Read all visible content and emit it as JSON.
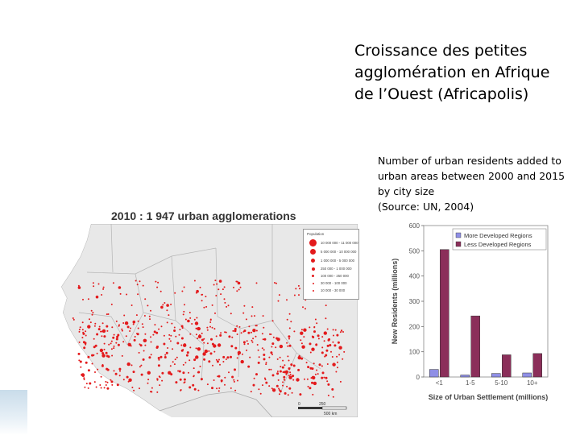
{
  "slide": {
    "title": "Croissance des petites agglomération en Afrique de l’Ouest (Africapolis)",
    "caption_lines": [
      "Number of urban residents added to",
      "urban areas between 2000 and 2015",
      "by city size",
      "(Source: UN, 2004)"
    ]
  },
  "map": {
    "title": "2010 : 1 947 urban agglomerations",
    "legend": {
      "title": "Population",
      "rows": [
        "10 000 000 - 11 000 000",
        "5 000 000 - 10 000 000",
        "1 000 000 - 5 000 000",
        "250 000 - 1 000 000",
        "100 000 - 250 000",
        "30 000 - 100 000",
        "10 000 - 30 000"
      ]
    },
    "scale_labels": [
      "0",
      "250",
      "500 km"
    ],
    "colors": {
      "dot": "#e31a1c",
      "land": "#e8e8e8",
      "sea": "#ffffff",
      "border": "#aaaaaa"
    }
  },
  "chart_data": {
    "type": "bar",
    "categories": [
      "<1",
      "1-5",
      "5-10",
      "10+"
    ],
    "series": [
      {
        "name": "More Developed Regions",
        "values": [
          30,
          8,
          14,
          16
        ],
        "color": "#8f8fe6"
      },
      {
        "name": "Less Developed Regions",
        "values": [
          505,
          242,
          88,
          93
        ],
        "color": "#8b2f5a"
      }
    ],
    "xlabel": "Size of Urban Settlement (millions)",
    "ylabel": "New Residents (millions)",
    "ylim": [
      0,
      600
    ],
    "yticks": [
      "0",
      "100",
      "200",
      "300",
      "400",
      "500",
      "600"
    ],
    "grid": false,
    "legend_position": "top-right"
  }
}
